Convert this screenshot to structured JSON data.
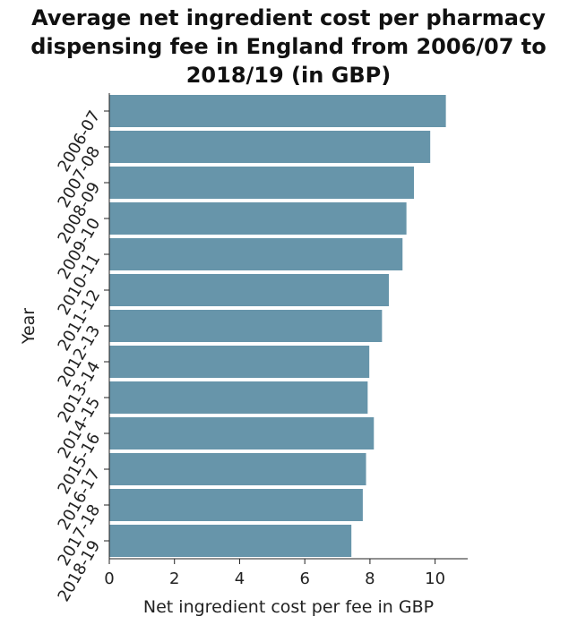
{
  "chart_data": {
    "type": "bar",
    "orientation": "horizontal",
    "title_lines": [
      "Average net ingredient cost per pharmacy",
      "dispensing fee in England from 2006/07 to",
      "2018/19 (in GBP)"
    ],
    "xlabel": "Net ingredient cost per fee in GBP",
    "ylabel": "Year",
    "categories": [
      "2006-07",
      "2007-08",
      "2008-09",
      "2009-10",
      "2010-11",
      "2011-12",
      "2012-13",
      "2013-14",
      "2014-15",
      "2015-16",
      "2016-17",
      "2017-18",
      "2018-19"
    ],
    "values": [
      10.33,
      9.85,
      9.35,
      9.12,
      9.0,
      8.58,
      8.37,
      7.98,
      7.93,
      8.12,
      7.88,
      7.78,
      7.43
    ],
    "xlim": [
      0,
      11
    ],
    "xticks": [
      0,
      2,
      4,
      6,
      8,
      10
    ],
    "bar_color": "#6795aa",
    "grid": false,
    "legend": "none"
  }
}
